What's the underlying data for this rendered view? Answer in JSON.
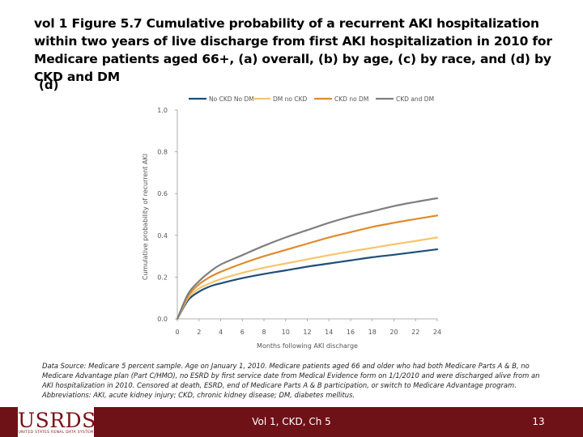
{
  "slide": {
    "title": "vol 1 Figure 5.7  Cumulative probability of a recurrent AKI hospitalization within two years of live discharge from first AKI hospitalization in 2010 for Medicare patients aged 66+, (a) overall, (b) by age, (c) by race, and (d) by CKD and DM",
    "panel_label": "(d)",
    "source_text": "Data Source: Medicare 5 percent sample. Age on January 1, 2010. Medicare patients aged 66 and older who had both Medicare Parts A & B, no Medicare Advantage plan (Part C/HMO), no ESRD by first service date from Medical Evidence form on 1/1/2010 and were discharged alive from an AKI hospitalization in 2010. Censored at death, ESRD, end of Medicare Parts A & B participation, or switch to Medicare Advantage program. Abbreviations: AKI, acute kidney injury; CKD, chronic kidney disease; DM, diabetes mellitus.",
    "footer_center": "Vol 1, CKD, Ch 5",
    "page_number": "13",
    "logo_text": "USRDS",
    "logo_subtext": "UNITED STATES RENAL DATA SYSTEM"
  },
  "colors": {
    "footer_bg": "#6e1218",
    "no_ckd_no_dm": "#1f4e79",
    "dm_no_ckd": "#f6c56b",
    "ckd_no_dm": "#e08a2e",
    "ckd_and_dm": "#7f7f7f"
  },
  "chart_data": {
    "type": "line",
    "title": "",
    "xlabel": "Months following AKI discharge",
    "ylabel": "Cumulative probability of recurrent AKI",
    "xlim": [
      0,
      24
    ],
    "ylim": [
      0,
      1.0
    ],
    "x_ticks": [
      "0",
      "2",
      "4",
      "6",
      "8",
      "10",
      "12",
      "14",
      "16",
      "18",
      "20",
      "22",
      "24"
    ],
    "y_ticks": [
      "0.0",
      "0.2",
      "0.4",
      "0.6",
      "0.8",
      "1.0"
    ],
    "x": [
      0,
      1,
      2,
      3,
      4,
      6,
      8,
      10,
      12,
      14,
      16,
      18,
      20,
      22,
      24
    ],
    "series": [
      {
        "name": "No CKD No DM",
        "color_key": "no_ckd_no_dm",
        "values": [
          0,
          0.09,
          0.13,
          0.155,
          0.17,
          0.195,
          0.215,
          0.232,
          0.25,
          0.265,
          0.28,
          0.295,
          0.307,
          0.32,
          0.333
        ]
      },
      {
        "name": "DM no CKD",
        "color_key": "dm_no_ckd",
        "values": [
          0,
          0.1,
          0.145,
          0.17,
          0.19,
          0.22,
          0.245,
          0.265,
          0.285,
          0.305,
          0.323,
          0.34,
          0.357,
          0.373,
          0.39
        ]
      },
      {
        "name": "CKD no DM",
        "color_key": "ckd_no_dm",
        "values": [
          0,
          0.11,
          0.165,
          0.2,
          0.225,
          0.265,
          0.3,
          0.33,
          0.36,
          0.39,
          0.415,
          0.44,
          0.46,
          0.478,
          0.495
        ]
      },
      {
        "name": "CKD and DM",
        "color_key": "ckd_and_dm",
        "values": [
          0,
          0.12,
          0.18,
          0.225,
          0.26,
          0.305,
          0.35,
          0.39,
          0.425,
          0.46,
          0.49,
          0.515,
          0.54,
          0.56,
          0.578
        ]
      }
    ],
    "legend_position": "top",
    "grid": false
  }
}
